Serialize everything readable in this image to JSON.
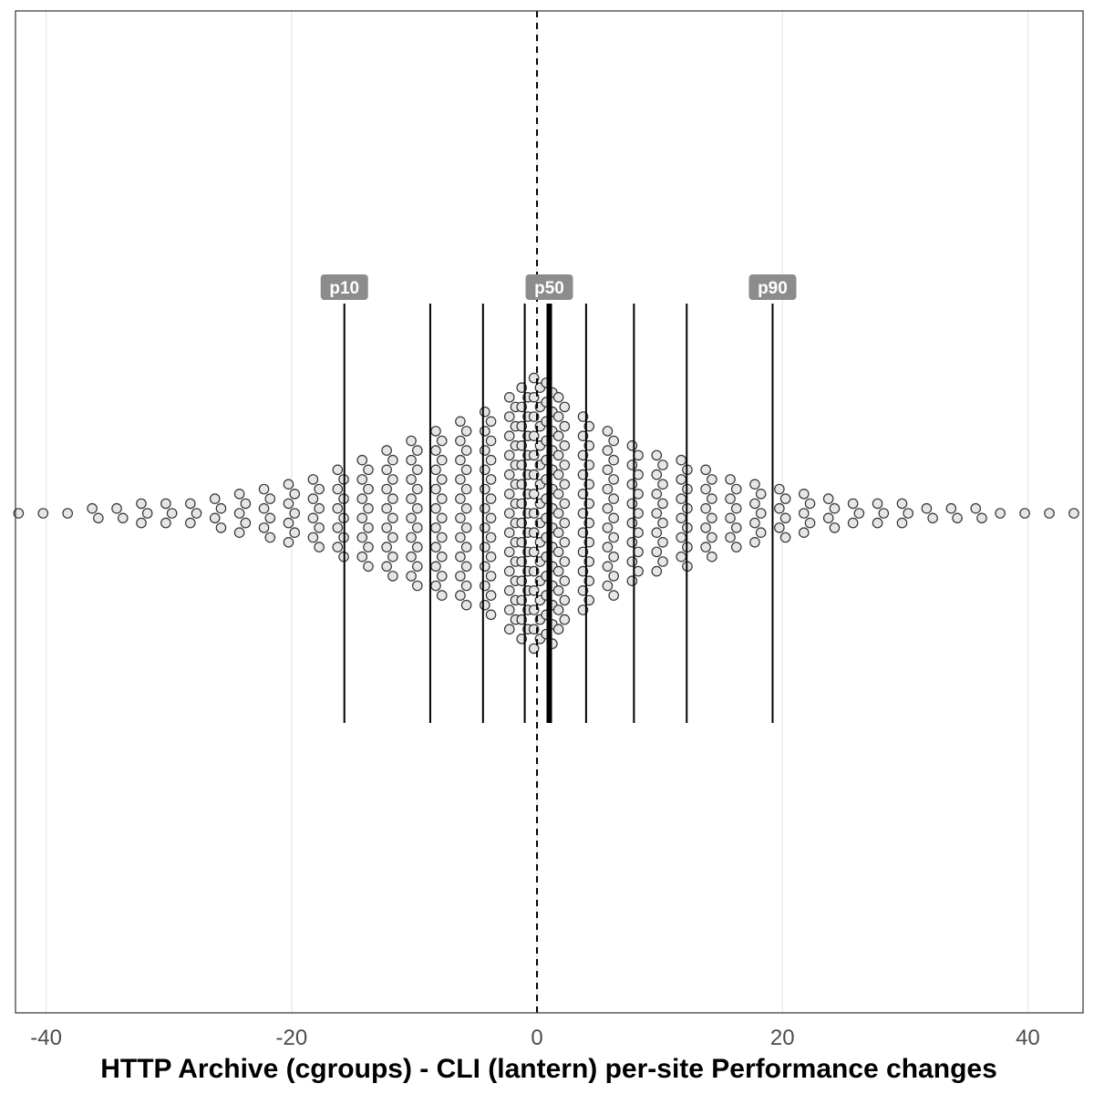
{
  "chart_data": {
    "type": "scatter",
    "subtype": "beeswarm",
    "title": "",
    "xlabel": "HTTP Archive (cgroups) - CLI (lantern) per-site Performance changes",
    "ylabel": "",
    "xlim": [
      -42.5,
      44.5
    ],
    "x_ticks": [
      -40,
      -20,
      0,
      20,
      40
    ],
    "x_tick_labels": [
      "-40",
      "-20",
      "0",
      "20",
      "40"
    ],
    "grid": "vertical major gridlines",
    "reference_line": {
      "x": 0,
      "style": "dashed"
    },
    "percentile_lines": [
      {
        "label": "p10",
        "x": -15.7
      },
      {
        "label": "",
        "x": -8.7
      },
      {
        "label": "",
        "x": -4.4
      },
      {
        "label": "",
        "x": -1.0
      },
      {
        "label": "p50",
        "x": 1.0
      },
      {
        "label": "",
        "x": 4.0
      },
      {
        "label": "",
        "x": 7.9
      },
      {
        "label": "",
        "x": 12.2
      },
      {
        "label": "p90",
        "x": 19.2
      }
    ],
    "distribution": {
      "bin_centers": [
        -42,
        -40,
        -38,
        -36,
        -34,
        -32,
        -30,
        -28,
        -26,
        -24,
        -22,
        -20,
        -18,
        -16,
        -14,
        -12,
        -10,
        -8,
        -6,
        -4,
        -2,
        -1,
        0,
        1,
        2,
        4,
        6,
        8,
        10,
        12,
        14,
        16,
        18,
        20,
        22,
        24,
        26,
        28,
        30,
        32,
        34,
        36,
        38,
        40,
        42,
        44
      ],
      "counts": [
        1,
        1,
        1,
        2,
        2,
        3,
        3,
        3,
        4,
        5,
        6,
        7,
        8,
        10,
        12,
        14,
        16,
        18,
        20,
        22,
        25,
        27,
        29,
        28,
        25,
        21,
        18,
        15,
        13,
        12,
        10,
        8,
        7,
        6,
        5,
        4,
        3,
        3,
        3,
        2,
        2,
        2,
        1,
        1,
        1,
        1
      ]
    },
    "colors": {
      "point_fill": "#e6e6e6",
      "point_stroke": "#333333",
      "label_bg": "#8c8c8c",
      "line": "#000000"
    }
  }
}
